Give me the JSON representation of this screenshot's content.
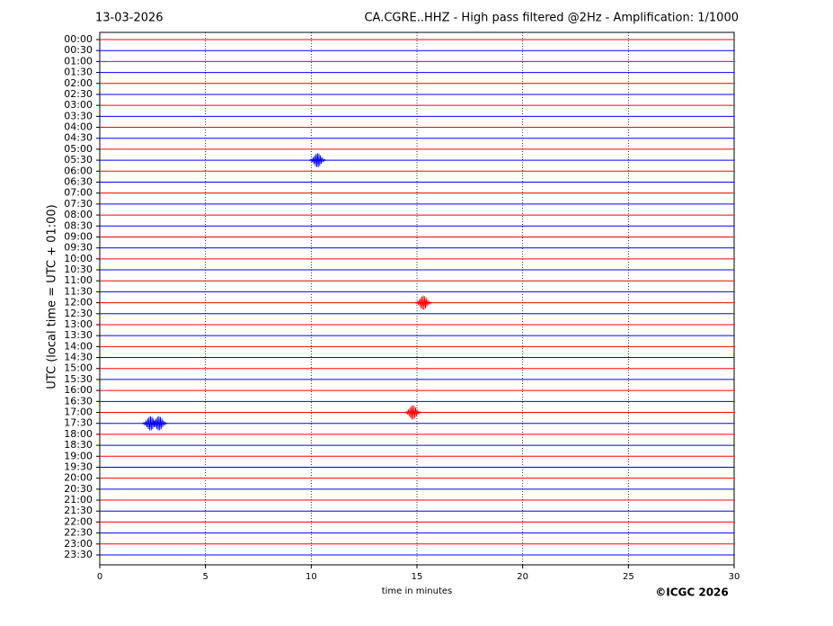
{
  "chart_data": {
    "type": "helicorder",
    "date": "13-03-2026",
    "title": "CA.CGRE..HHZ - High pass filtered @2Hz - Amplification: 1/1000",
    "ylabel": "UTC (local time = UTC + 01:00)",
    "xlabel": "time in minutes",
    "credit": "©ICGC 2026",
    "categories": [
      "00:00",
      "00:30",
      "01:00",
      "01:30",
      "02:00",
      "02:30",
      "03:00",
      "03:30",
      "04:00",
      "04:30",
      "05:00",
      "05:30",
      "06:00",
      "06:30",
      "07:00",
      "07:30",
      "08:00",
      "08:30",
      "09:00",
      "09:30",
      "10:00",
      "10:30",
      "11:00",
      "11:30",
      "12:00",
      "12:30",
      "13:00",
      "13:30",
      "14:00",
      "14:30",
      "15:00",
      "15:30",
      "16:00",
      "16:30",
      "17:00",
      "17:30",
      "18:00",
      "18:30",
      "19:00",
      "19:30",
      "20:00",
      "20:30",
      "21:00",
      "21:30",
      "22:00",
      "22:30",
      "23:00",
      "23:30"
    ],
    "trace_colors": [
      "#ff0000",
      "#0000ff"
    ],
    "xlim": [
      0,
      30
    ],
    "xticks": [
      0,
      5,
      10,
      15,
      20,
      25,
      30
    ],
    "grid": true,
    "events": [
      {
        "row": 11,
        "minute": 10.3
      },
      {
        "row": 24,
        "minute": 15.3
      },
      {
        "row": 34,
        "minute": 14.8
      },
      {
        "row": 35,
        "minute": 2.4
      },
      {
        "row": 35,
        "minute": 2.8
      }
    ]
  }
}
